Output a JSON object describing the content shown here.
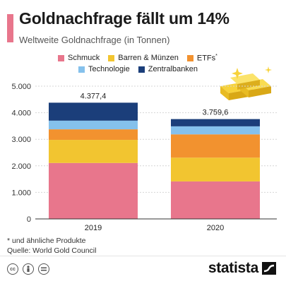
{
  "header": {
    "title": "Goldnachfrage fällt um 14%",
    "subtitle": "Weltweite Goldnachfrage (in Tonnen)"
  },
  "colors": {
    "accent": "#e8768c",
    "schmuck": "#e8768c",
    "barren": "#f2c530",
    "etfs": "#f2922f",
    "technologie": "#85c1ec",
    "zentralbanken": "#1b3e7a"
  },
  "legend": {
    "items": [
      {
        "label": "Schmuck",
        "sup": "",
        "color": "#e8768c"
      },
      {
        "label": "Barren & Münzen",
        "sup": "",
        "color": "#f2c530"
      },
      {
        "label": "ETFs",
        "sup": "*",
        "color": "#f2922f"
      },
      {
        "label": "Technologie",
        "sup": "",
        "color": "#85c1ec"
      },
      {
        "label": "Zentralbanken",
        "sup": "",
        "color": "#1b3e7a"
      }
    ]
  },
  "chart_data": {
    "type": "bar",
    "stacked": true,
    "categories": [
      "2019",
      "2020"
    ],
    "series": [
      {
        "name": "Schmuck",
        "values": [
          2107,
          1412
        ]
      },
      {
        "name": "Barren & Münzen",
        "values": [
          870,
          896
        ]
      },
      {
        "name": "ETFs",
        "values": [
          398,
          877
        ]
      },
      {
        "name": "Technologie",
        "values": [
          326,
          302
        ]
      },
      {
        "name": "Zentralbanken",
        "values": [
          676.4,
          272.6
        ]
      }
    ],
    "totals": [
      "4.377,4",
      "3.759,6"
    ],
    "ylim": [
      0,
      5000
    ],
    "yticks": [
      0,
      1000,
      2000,
      3000,
      4000,
      5000
    ],
    "ytick_labels": [
      "0",
      "1.000",
      "2.000",
      "3.000",
      "4.000",
      "5.000"
    ],
    "grid": true,
    "legend_position": "top"
  },
  "footer": {
    "footnote": "* und ähnliche Produkte",
    "source": "Quelle: World Gold Council",
    "brand": "statista",
    "license_icons": [
      "cc-icon",
      "by-icon",
      "nd-icon"
    ]
  }
}
